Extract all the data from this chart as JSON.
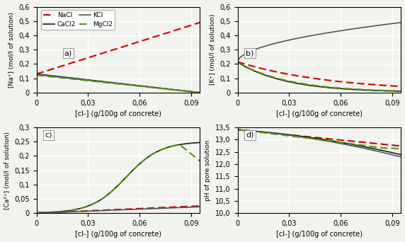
{
  "subplot_labels": [
    "a)",
    "b)",
    "c)",
    "d)"
  ],
  "legend_entries": [
    "NaCl",
    "CaCl2",
    "KCl",
    "MgCl2"
  ],
  "xlabel": "[cl-] (g/100g of concrete)",
  "ylabel_a": "[Na⁺] (mol/l of solution)",
  "ylabel_b": "[K⁺] (mol/l of solution)",
  "ylabel_c": "[Ca²⁺] (mol/l of solution)",
  "ylabel_d": "pH of pore solution",
  "ylim_ab": [
    0,
    0.6
  ],
  "ylim_c": [
    0,
    0.3
  ],
  "ylim_d": [
    10.0,
    13.5
  ],
  "xlim": [
    0,
    0.095
  ],
  "xticks": [
    0,
    0.03,
    0.06,
    0.09
  ],
  "yticks_ab": [
    0,
    0.1,
    0.2,
    0.3,
    0.4,
    0.5,
    0.6
  ],
  "yticks_c": [
    0,
    0.05,
    0.1,
    0.15,
    0.2,
    0.25,
    0.3
  ],
  "yticks_d": [
    10.0,
    10.5,
    11.0,
    11.5,
    12.0,
    12.5,
    13.0,
    13.5
  ],
  "colors": {
    "NaCl": "#cc0000",
    "CaCl2": "#1a1a1a",
    "KCl": "#555555",
    "MgCl2": "#4c9900"
  },
  "background": "#f2f2ee",
  "grid_color": "#ffffff"
}
